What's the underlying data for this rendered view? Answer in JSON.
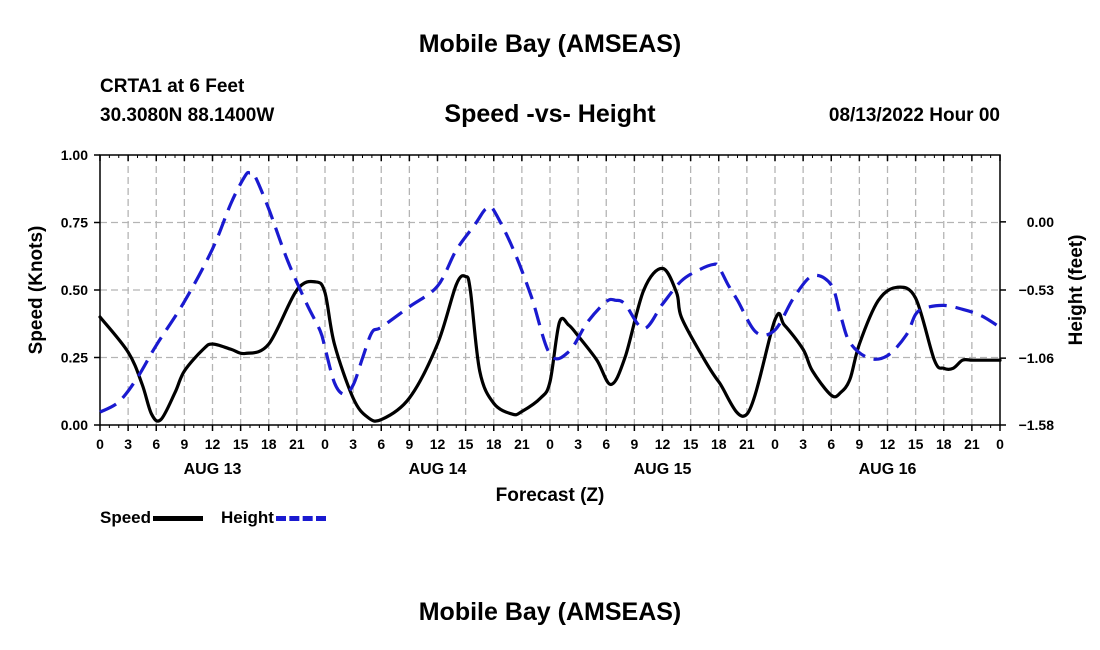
{
  "header": {
    "title": "Mobile Bay (AMSEAS)",
    "station": "CRTA1 at 6 Feet",
    "coords": "30.3080N  88.1400W",
    "subtitle": "Speed -vs- Height",
    "datetime": "08/13/2022 Hour 00"
  },
  "footer": {
    "title": "Mobile Bay (AMSEAS)"
  },
  "legend": {
    "speed_label": "Speed",
    "height_label": "Height"
  },
  "chart_data": {
    "type": "line",
    "title": "Speed -vs- Height",
    "xlabel": "Forecast (Z)",
    "ylabel": "Speed (Knots)",
    "y2label": "Height (feet)",
    "xlim": [
      0,
      96
    ],
    "ylim": [
      0,
      1.0
    ],
    "y2lim": [
      -1.58,
      0.52
    ],
    "x_tick_step_hours": 3,
    "x_tick_labels": [
      "0",
      "3",
      "6",
      "9",
      "12",
      "15",
      "18",
      "21",
      "0",
      "3",
      "6",
      "9",
      "12",
      "15",
      "18",
      "21",
      "0",
      "3",
      "6",
      "9",
      "12",
      "15",
      "18",
      "21",
      "0",
      "3",
      "6",
      "9",
      "12",
      "15",
      "18",
      "21",
      "0"
    ],
    "day_labels": [
      {
        "label": "AUG 13",
        "hour": 12
      },
      {
        "label": "AUG 14",
        "hour": 36
      },
      {
        "label": "AUG 15",
        "hour": 60
      },
      {
        "label": "AUG 16",
        "hour": 84
      }
    ],
    "y_ticks": [
      0.0,
      0.25,
      0.5,
      0.75,
      1.0
    ],
    "y_tick_labels": [
      "0.00",
      "0.25",
      "0.50",
      "0.75",
      "1.00"
    ],
    "y2_ticks": [
      0.0,
      -0.53,
      -1.06,
      -1.58
    ],
    "y2_tick_labels": [
      "0.00",
      "−0.53",
      "−1.06",
      "−1.58"
    ],
    "colors": {
      "speed": "#000000",
      "height": "#1a1ad0"
    },
    "series": [
      {
        "name": "Speed",
        "axis": "left",
        "x": [
          0,
          3,
          4.5,
          5.5,
          6.5,
          8,
          9,
          11,
          12,
          14,
          15.5,
          18,
          21,
          23,
          24,
          25,
          27,
          28.5,
          30,
          33,
          36,
          38,
          39,
          39.5,
          40.5,
          42,
          44,
          45,
          47,
          48,
          49,
          50,
          51,
          53,
          54.5,
          56,
          58,
          60,
          61.5,
          62,
          64,
          66,
          69,
          72,
          73,
          75,
          76,
          78,
          79,
          80,
          81,
          83,
          85,
          87,
          89,
          90,
          91,
          92,
          93,
          94,
          95,
          96
        ],
        "values": [
          0.4,
          0.27,
          0.15,
          0.04,
          0.02,
          0.12,
          0.2,
          0.28,
          0.3,
          0.28,
          0.265,
          0.3,
          0.5,
          0.53,
          0.49,
          0.3,
          0.1,
          0.03,
          0.02,
          0.1,
          0.3,
          0.52,
          0.55,
          0.5,
          0.2,
          0.08,
          0.04,
          0.05,
          0.1,
          0.16,
          0.38,
          0.37,
          0.33,
          0.24,
          0.15,
          0.25,
          0.5,
          0.58,
          0.49,
          0.4,
          0.27,
          0.16,
          0.04,
          0.39,
          0.37,
          0.28,
          0.2,
          0.11,
          0.12,
          0.17,
          0.3,
          0.46,
          0.51,
          0.47,
          0.24,
          0.21,
          0.21,
          0.24,
          0.24,
          0.24,
          0.24,
          0.24
        ]
      },
      {
        "name": "Height",
        "axis": "right",
        "x": [
          0,
          2,
          4,
          6,
          9,
          12,
          14,
          15.5,
          16,
          16.5,
          18,
          20,
          22,
          23.5,
          24,
          25,
          26,
          27,
          28,
          29,
          30,
          33,
          36,
          38,
          40,
          41,
          41.5,
          42,
          44,
          46,
          48,
          50,
          52,
          54,
          55,
          56,
          58,
          60,
          62,
          64,
          65.5,
          66,
          67,
          68,
          70,
          72,
          74,
          76,
          78,
          79,
          80,
          82,
          84,
          86,
          87,
          88,
          90,
          92,
          94,
          96
        ],
        "values": [
          -1.48,
          -1.4,
          -1.21,
          -0.96,
          -0.62,
          -0.21,
          0.15,
          0.36,
          0.38,
          0.36,
          0.1,
          -0.3,
          -0.63,
          -0.85,
          -0.98,
          -1.25,
          -1.34,
          -1.27,
          -1.06,
          -0.86,
          -0.82,
          -0.66,
          -0.5,
          -0.22,
          -0.02,
          0.09,
          0.1,
          0.09,
          -0.2,
          -0.58,
          -1.03,
          -1.01,
          -0.78,
          -0.62,
          -0.61,
          -0.64,
          -0.83,
          -0.64,
          -0.46,
          -0.37,
          -0.33,
          -0.35,
          -0.49,
          -0.61,
          -0.86,
          -0.84,
          -0.59,
          -0.42,
          -0.49,
          -0.73,
          -0.94,
          -1.06,
          -1.04,
          -0.88,
          -0.72,
          -0.67,
          -0.65,
          -0.68,
          -0.73,
          -0.82
        ]
      }
    ]
  }
}
